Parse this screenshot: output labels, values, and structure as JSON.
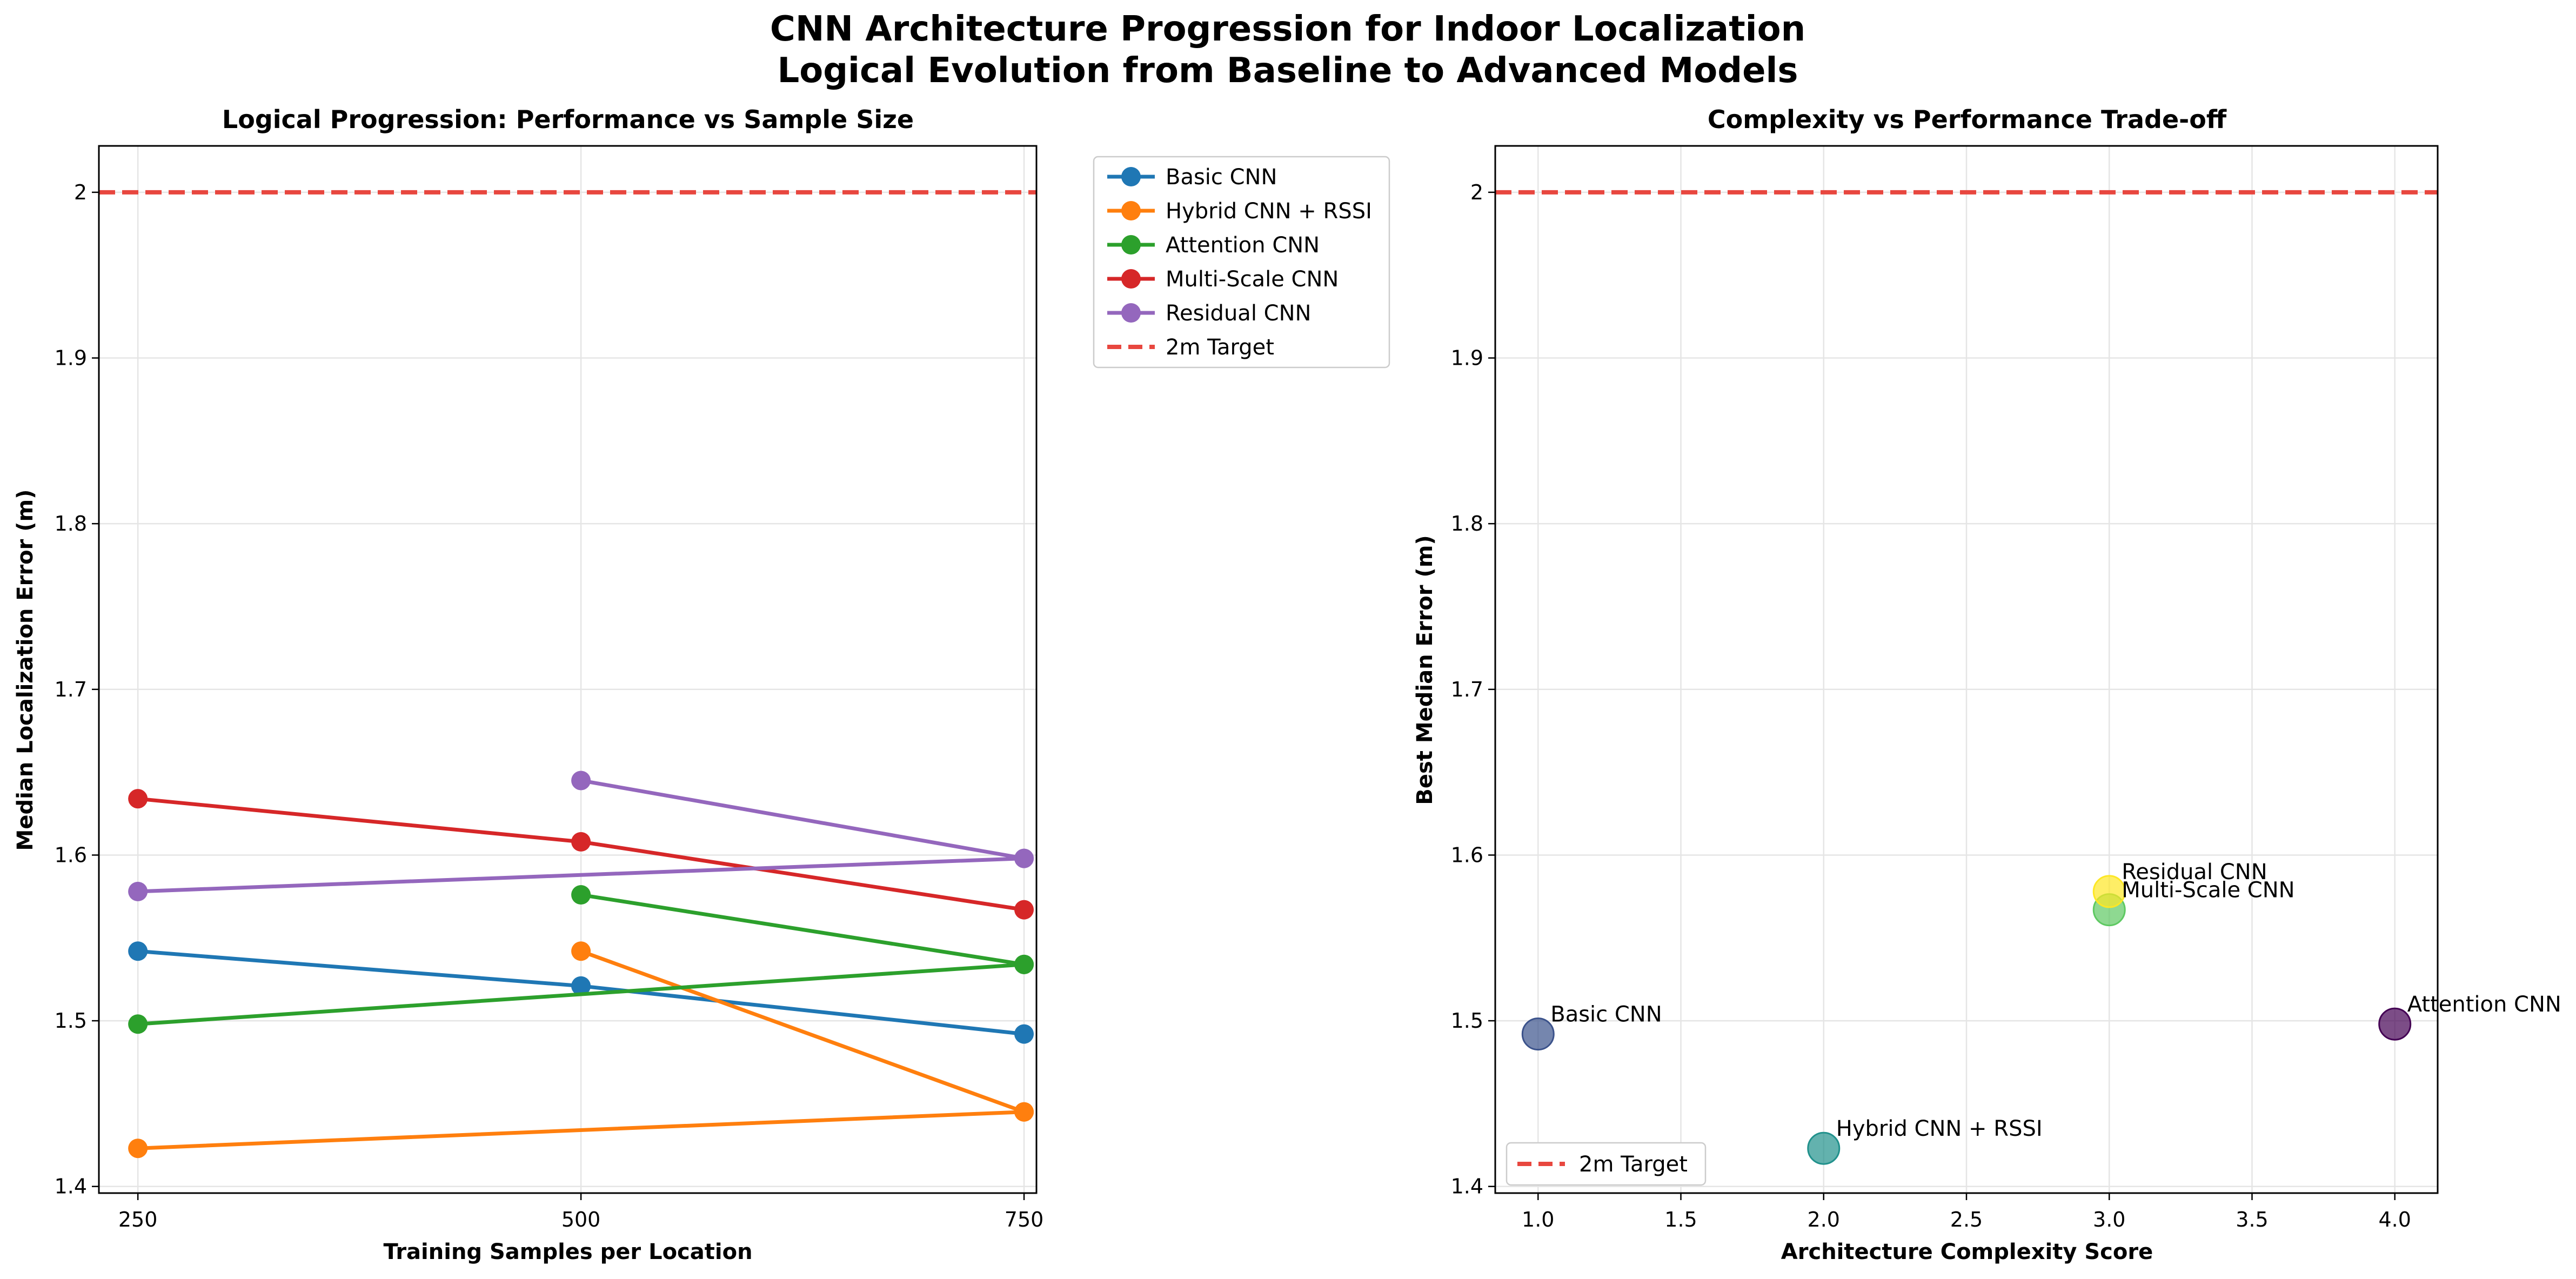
{
  "suptitle": [
    "CNN Architecture Progression for Indoor Localization",
    "Logical Evolution from Baseline to Advanced Models"
  ],
  "colors": {
    "target": "#e8473f",
    "grid": "#e5e5e5",
    "series": [
      "#1f77b4",
      "#ff7f0e",
      "#2ca02c",
      "#d62728",
      "#9467bd"
    ],
    "scatter": [
      "#3b528b",
      "#21918c",
      "#5ec962",
      "#fde725",
      "#440154"
    ]
  },
  "chart_data": [
    {
      "type": "line",
      "title": "Logical Progression: Performance vs Sample Size",
      "xlabel": "Training Samples per Location",
      "ylabel": "Median Localization Error (m)",
      "xlim": [
        228,
        757
      ],
      "ylim": [
        1.396,
        2.028
      ],
      "xticks": [
        250,
        500,
        750
      ],
      "yticks": [
        1.4,
        1.5,
        1.6,
        1.7,
        1.8,
        1.9,
        2.0
      ],
      "grid": true,
      "legend_position": "outside right, top",
      "target": {
        "name": "2m Target",
        "y": 2.0
      },
      "series": [
        {
          "name": "Basic CNN",
          "points": [
            [
              250,
              1.542
            ],
            [
              500,
              1.521
            ],
            [
              750,
              1.492
            ]
          ]
        },
        {
          "name": "Hybrid CNN + RSSI",
          "points": [
            [
              250,
              1.423
            ],
            [
              750,
              1.445
            ],
            [
              500,
              1.542
            ],
            [
              750,
              1.445
            ]
          ]
        },
        {
          "name": "Attention CNN",
          "points": [
            [
              250,
              1.498
            ],
            [
              750,
              1.534
            ],
            [
              500,
              1.576
            ],
            [
              750,
              1.534
            ]
          ]
        },
        {
          "name": "Multi-Scale CNN",
          "points": [
            [
              250,
              1.634
            ],
            [
              500,
              1.608
            ],
            [
              750,
              1.567
            ]
          ]
        },
        {
          "name": "Residual CNN",
          "points": [
            [
              250,
              1.578
            ],
            [
              750,
              1.598
            ],
            [
              500,
              1.645
            ],
            [
              750,
              1.598
            ]
          ]
        }
      ]
    },
    {
      "type": "scatter",
      "title": "Complexity vs Performance Trade-off",
      "xlabel": "Architecture Complexity Score",
      "ylabel": "Best Median Error (m)",
      "xlim": [
        0.85,
        4.15
      ],
      "ylim": [
        1.396,
        2.028
      ],
      "xticks": [
        "1.0",
        "1.5",
        "2.0",
        "2.5",
        "3.0",
        "3.5",
        "4.0"
      ],
      "yticks": [
        1.4,
        1.5,
        1.6,
        1.7,
        1.8,
        1.9,
        2.0
      ],
      "grid": true,
      "legend_position": "lower left",
      "target": {
        "name": "2m Target",
        "y": 2.0
      },
      "points": [
        {
          "label": "Basic CNN",
          "x": 1.0,
          "y": 1.492
        },
        {
          "label": "Hybrid CNN + RSSI",
          "x": 2.0,
          "y": 1.423
        },
        {
          "label": "Multi-Scale CNN",
          "x": 3.0,
          "y": 1.567
        },
        {
          "label": "Residual CNN",
          "x": 3.0,
          "y": 1.578
        },
        {
          "label": "Attention CNN",
          "x": 4.0,
          "y": 1.498
        }
      ]
    }
  ]
}
